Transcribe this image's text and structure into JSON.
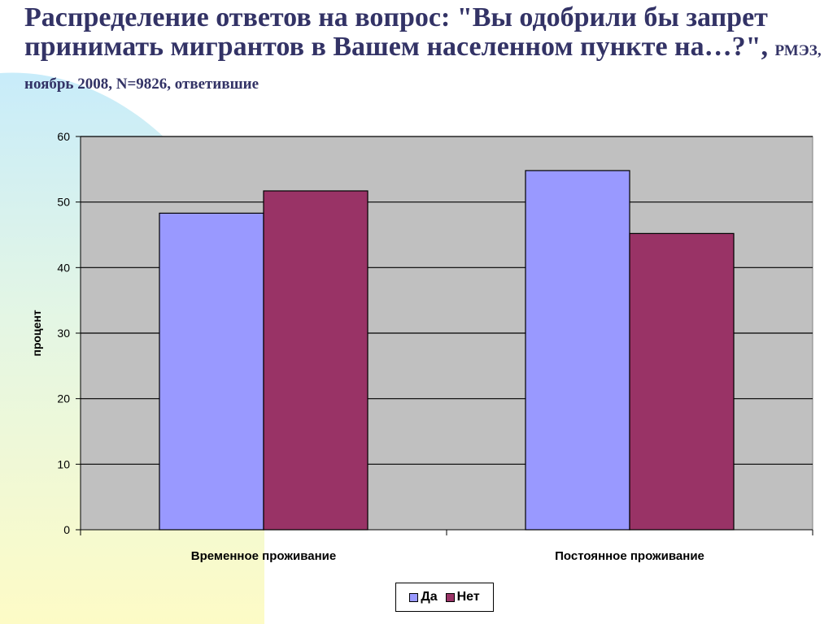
{
  "title": {
    "main": "Распределение ответов на вопрос: \"Вы одобрили бы запрет принимать мигрантов в Вашем населенном пункте на…?\",",
    "sub": "РМЭЗ, ноябрь 2008, N=9826, ответившие"
  },
  "colors": {
    "title": "#333366",
    "plot_bg": "#c0c0c0",
    "series_da": "#9999ff",
    "series_net": "#993366"
  },
  "chart_data": {
    "type": "bar",
    "categories": [
      "Временное проживание",
      "Постоянное проживание"
    ],
    "series": [
      {
        "name": "Да",
        "values": [
          48.3,
          54.8
        ],
        "color": "#9999ff"
      },
      {
        "name": "Нет",
        "values": [
          51.7,
          45.2
        ],
        "color": "#993366"
      }
    ],
    "ylabel": "процент",
    "xlabel": "",
    "ylim": [
      0,
      60
    ],
    "yticks": [
      0,
      10,
      20,
      30,
      40,
      50,
      60
    ],
    "grid": true,
    "legend": "bottom-center"
  }
}
